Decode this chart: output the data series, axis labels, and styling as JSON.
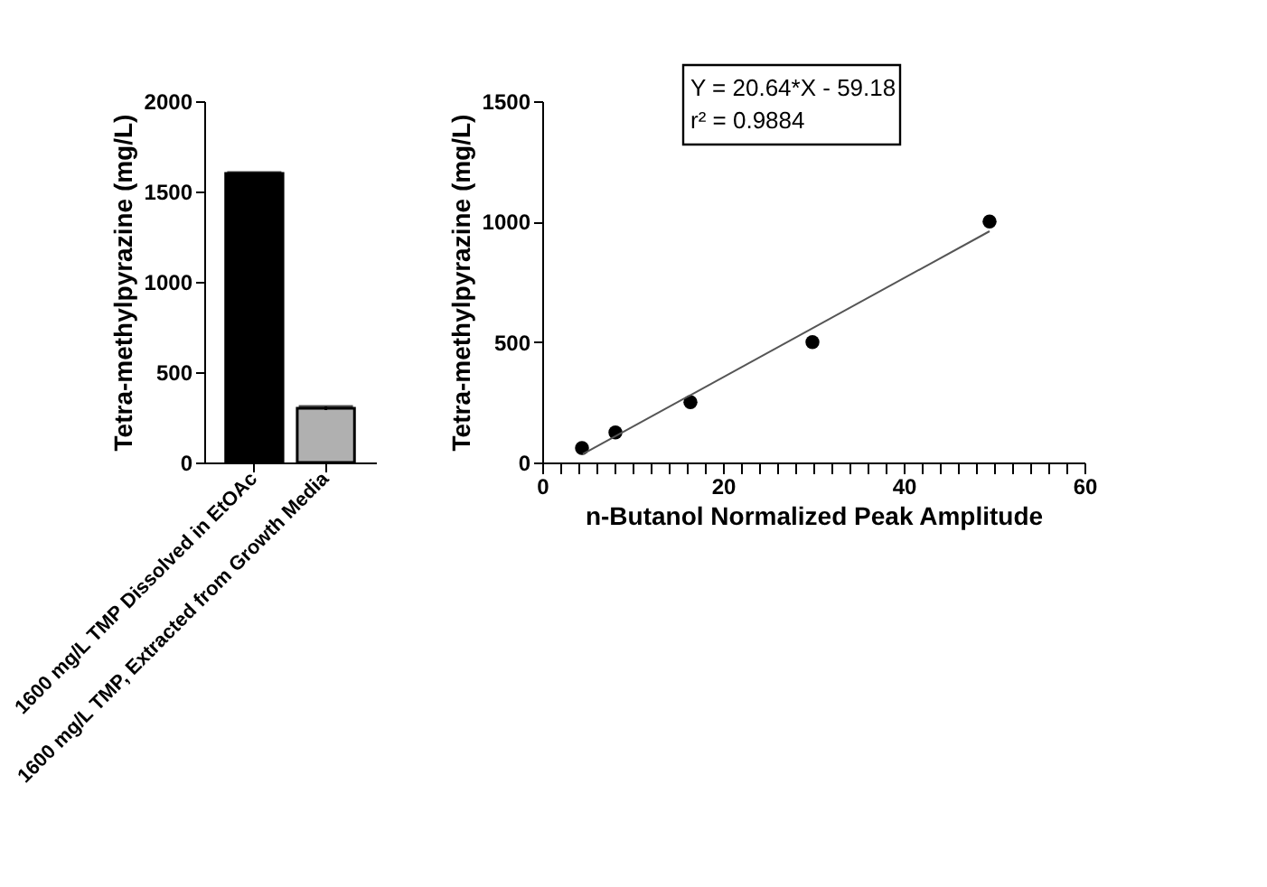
{
  "chart_data": [
    {
      "type": "bar",
      "ylabel": "Tetra-methylpyrazine (mg/L)",
      "categories": [
        "1600 mg/L TMP Dissolved in EtOAc",
        "1600 mg/L TMP, Extracted from Growth Media"
      ],
      "values": [
        1600,
        300
      ],
      "errors": [
        5,
        10
      ],
      "colors": [
        "#000000",
        "#b0b0b0"
      ],
      "ylim": [
        0,
        2000
      ],
      "yticks": [
        0,
        500,
        1000,
        1500,
        2000
      ],
      "grid": false
    },
    {
      "type": "scatter",
      "xlabel": "n-Butanol Normalized Peak Amplitude",
      "ylabel": "Tetra-methylpyrazine (mg/L)",
      "series": [
        {
          "type": "scatter",
          "color": "#000000",
          "marker": "circle",
          "x": [
            4.4,
            8.1,
            16.4,
            29.9,
            49.5
          ],
          "values": [
            60,
            125,
            250,
            500,
            1000
          ]
        },
        {
          "type": "line",
          "color": "#555555",
          "line_style": "solid",
          "x": [
            4.5,
            49.5
          ],
          "values": [
            35,
            960
          ]
        }
      ],
      "annotations": [
        "Y = 20.64*X - 59.18",
        "r² = 0.9884"
      ],
      "xlim": [
        0,
        60
      ],
      "ylim": [
        0,
        1500
      ],
      "xticks": [
        0,
        {
          "value": 2,
          "label": null
        },
        {
          "value": 4,
          "label": null
        },
        {
          "value": 6,
          "label": null
        },
        {
          "value": 8,
          "label": null
        },
        {
          "value": 10,
          "label": null
        },
        {
          "value": 12,
          "label": null
        },
        {
          "value": 14,
          "label": null
        },
        {
          "value": 16,
          "label": null
        },
        {
          "value": 18,
          "label": null
        },
        20,
        {
          "value": 22,
          "label": null
        },
        {
          "value": 24,
          "label": null
        },
        {
          "value": 26,
          "label": null
        },
        {
          "value": 28,
          "label": null
        },
        {
          "value": 30,
          "label": null
        },
        {
          "value": 32,
          "label": null
        },
        {
          "value": 34,
          "label": null
        },
        {
          "value": 36,
          "label": null
        },
        {
          "value": 38,
          "label": null
        },
        40,
        {
          "value": 42,
          "label": null
        },
        {
          "value": 44,
          "label": null
        },
        {
          "value": 46,
          "label": null
        },
        {
          "value": 48,
          "label": null
        },
        {
          "value": 50,
          "label": null
        },
        {
          "value": 52,
          "label": null
        },
        {
          "value": 54,
          "label": null
        },
        {
          "value": 56,
          "label": null
        },
        {
          "value": 58,
          "label": null
        },
        60
      ],
      "yticks": [
        0,
        500,
        1000,
        1500
      ],
      "grid": false
    }
  ]
}
